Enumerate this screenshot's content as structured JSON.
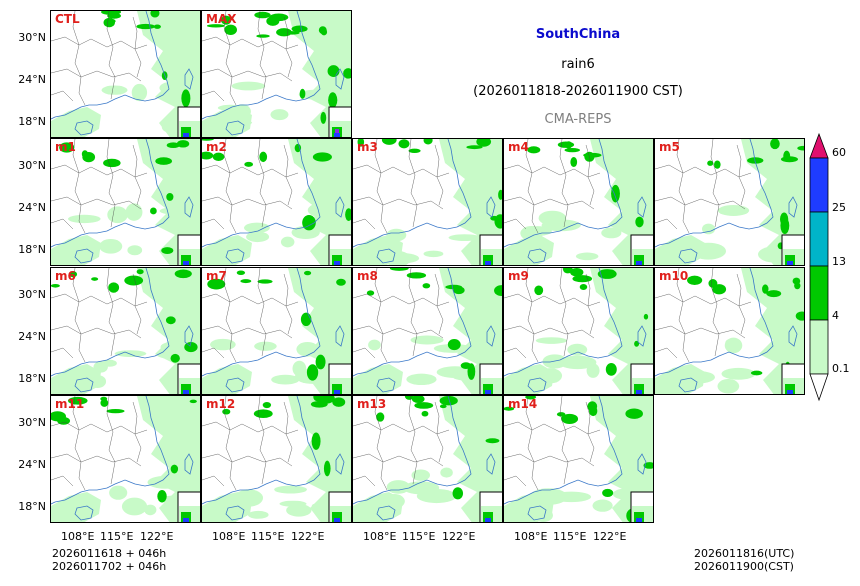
{
  "chart_data": {
    "type": "map_panels",
    "region": "SouthChina",
    "variable": "rain6",
    "period": "(2026011818-2026011900 CST)",
    "model": "CMA-REPS",
    "panels": [
      "CTL",
      "MAX",
      "m1",
      "m2",
      "m3",
      "m4",
      "m5",
      "m6",
      "m7",
      "m8",
      "m9",
      "m10",
      "m11",
      "m12",
      "m13",
      "m14"
    ],
    "lat_ticks": [
      "30°N",
      "24°N",
      "18°N"
    ],
    "lon_ticks": [
      "108°E",
      "115°E",
      "122°E"
    ],
    "colorbar": {
      "levels": [
        "0.1",
        "4",
        "13",
        "25",
        "60"
      ],
      "colors": [
        "#c8fac8",
        "#00c800",
        "#00b4c8",
        "#1e3cff",
        "#e0106e"
      ]
    },
    "footer_left": [
      "2026011618  +  046h",
      "2026011702  +  046h"
    ],
    "footer_right": [
      "2026011816(UTC)",
      "2026011900(CST)"
    ]
  },
  "colors": {
    "title": "#0a0acd",
    "subtitle_gray": "#808080",
    "label_red": "#e0201c"
  }
}
